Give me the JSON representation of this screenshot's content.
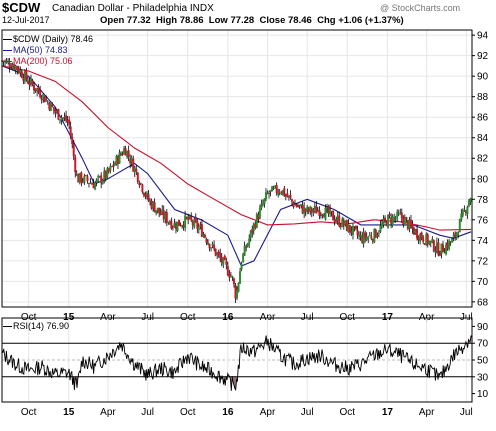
{
  "header": {
    "symbol": "$CDW",
    "name": "Canadian Dollar - Philadelphia",
    "exchange": "INDX",
    "watermark": "@ StockCharts.com",
    "date": "12-Jul-2017",
    "open_label": "Open",
    "open": "77.32",
    "high_label": "High",
    "high": "78.86",
    "low_label": "Low",
    "low": "77.28",
    "close_label": "Close",
    "close": "78.46",
    "chg_label": "Chg",
    "chg": "+1.06 (+1.37%)"
  },
  "legend": {
    "main": "$CDW (Daily) 78.46",
    "ma50": "MA(50) 74.83",
    "ma200": "MA(200) 75.06",
    "rsi": "RSI(14) 76.90"
  },
  "colors": {
    "price": "#000000",
    "up": "#2e8b2e",
    "down": "#c8182c",
    "ma50": "#1a1a8c",
    "ma200": "#c8102e",
    "grid": "#e6e6e6",
    "rsi_fill": "#8b6464"
  },
  "chart_data": [
    {
      "type": "line",
      "title": "$CDW Canadian Dollar - Philadelphia INDX",
      "x_ticks": [
        "Oct",
        "15",
        "Apr",
        "Jul",
        "Oct",
        "16",
        "Apr",
        "Jul",
        "Oct",
        "17",
        "Apr",
        "Jul"
      ],
      "ylim": [
        67.5,
        94.5
      ],
      "yticks": [
        68,
        70,
        72,
        74,
        76,
        78,
        80,
        82,
        84,
        86,
        88,
        90,
        92,
        94
      ],
      "y_axis_side": "right",
      "grid": true,
      "series": [
        {
          "name": "$CDW (Daily)",
          "x": [
            "2014-08",
            "2014-09",
            "2014-10",
            "2014-11",
            "2014-12",
            "2015-01-01",
            "2015-01-20",
            "2015-02",
            "2015-03",
            "2015-04",
            "2015-05-10",
            "2015-06",
            "2015-07",
            "2015-08",
            "2015-09",
            "2015-10",
            "2015-11",
            "2015-12",
            "2016-01-10",
            "2016-01-20",
            "2016-02",
            "2016-03",
            "2016-04",
            "2016-05",
            "2016-06",
            "2016-07",
            "2016-08",
            "2016-09",
            "2016-10",
            "2016-11",
            "2016-12",
            "2017-01",
            "2017-02",
            "2017-03",
            "2017-04",
            "2017-05",
            "2017-06",
            "2017-07-12"
          ],
          "values": [
            91.5,
            91,
            89.5,
            88.2,
            86.5,
            85.5,
            80,
            80,
            79.5,
            80.5,
            83,
            81,
            78,
            76.5,
            75.5,
            76,
            75,
            73,
            70.5,
            68.5,
            72,
            75.5,
            78.5,
            79,
            77.5,
            76.8,
            77,
            76.2,
            75.3,
            74.2,
            74.5,
            76,
            76.3,
            75,
            74,
            73,
            74,
            78.46
          ]
        },
        {
          "name": "MA(50)",
          "x": [
            "2014-08",
            "2014-10",
            "2014-12",
            "2015-02",
            "2015-03",
            "2015-04",
            "2015-06",
            "2015-07",
            "2015-09",
            "2015-11",
            "2016-01",
            "2016-02",
            "2016-03",
            "2016-05",
            "2016-07",
            "2016-09",
            "2016-11",
            "2017-01",
            "2017-03",
            "2017-05",
            "2017-06",
            "2017-07-12"
          ],
          "values": [
            91,
            90,
            87,
            82,
            79.5,
            80,
            81.5,
            80.5,
            77,
            76,
            74.5,
            71.5,
            72,
            77,
            78,
            77,
            75.5,
            75.5,
            75.5,
            74.5,
            74.2,
            74.83
          ]
        },
        {
          "name": "MA(200)",
          "x": [
            "2014-08",
            "2014-10",
            "2014-12",
            "2015-02",
            "2015-04",
            "2015-06",
            "2015-08",
            "2015-10",
            "2015-12",
            "2016-02",
            "2016-04",
            "2016-06",
            "2016-08",
            "2016-10",
            "2016-12",
            "2017-02",
            "2017-04",
            "2017-05",
            "2017-07-12"
          ],
          "values": [
            91,
            90.5,
            89.5,
            87.5,
            85,
            83,
            81.5,
            79.5,
            78,
            76.5,
            75.5,
            75.6,
            75.8,
            75.6,
            76,
            75.8,
            75.3,
            75,
            75.06
          ]
        }
      ]
    },
    {
      "type": "line",
      "title": "RSI(14)",
      "ylim": [
        0,
        100
      ],
      "yticks": [
        10,
        30,
        50,
        70,
        90
      ],
      "x_ticks": [
        "Oct",
        "15",
        "Apr",
        "Jul",
        "Oct",
        "16",
        "Apr",
        "Jul",
        "Oct",
        "17",
        "Apr",
        "Jul"
      ],
      "reference_lines": [
        30,
        70
      ],
      "series": [
        {
          "name": "RSI(14)",
          "x": [
            "2014-08",
            "2014-09",
            "2014-10",
            "2014-11",
            "2014-12",
            "2015-01-01",
            "2015-01-20",
            "2015-02",
            "2015-03",
            "2015-04",
            "2015-05",
            "2015-06",
            "2015-07",
            "2015-08",
            "2015-09",
            "2015-10",
            "2015-11",
            "2015-12",
            "2016-01-10",
            "2016-01-20",
            "2016-02",
            "2016-03",
            "2016-04",
            "2016-05",
            "2016-06",
            "2016-07",
            "2016-08",
            "2016-09",
            "2016-10",
            "2016-11",
            "2016-12",
            "2017-01",
            "2017-02",
            "2017-03",
            "2017-04",
            "2017-05",
            "2017-06",
            "2017-07-12"
          ],
          "values": [
            58,
            45,
            38,
            42,
            33,
            35,
            18,
            50,
            42,
            55,
            70,
            45,
            32,
            40,
            35,
            55,
            42,
            35,
            22,
            20,
            65,
            60,
            72,
            55,
            45,
            52,
            55,
            45,
            40,
            45,
            55,
            62,
            55,
            45,
            40,
            28,
            55,
            76.9
          ]
        }
      ]
    }
  ]
}
